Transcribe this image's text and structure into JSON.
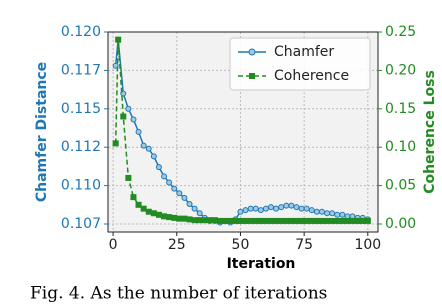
{
  "chart_data": {
    "type": "line",
    "caption": "Fig. 4. As the number of iterations",
    "xlabel": "Iteration",
    "ylabel": "Chamfer Distance",
    "y2label": "Coherence Loss",
    "x": [
      1,
      2,
      4,
      6,
      8,
      10,
      12,
      14,
      16,
      18,
      20,
      22,
      24,
      26,
      28,
      30,
      32,
      34,
      36,
      38,
      40,
      42,
      44,
      46,
      48,
      50,
      52,
      54,
      56,
      58,
      60,
      62,
      64,
      66,
      68,
      70,
      72,
      74,
      76,
      78,
      80,
      82,
      84,
      86,
      88,
      90,
      92,
      94,
      96,
      98,
      100
    ],
    "series": [
      {
        "name": "Chamfer",
        "color": "#1f77b4",
        "marker": "circle",
        "dash": false,
        "values": [
          0.1178,
          0.1195,
          0.116,
          0.115,
          0.1143,
          0.1135,
          0.1126,
          0.1124,
          0.1119,
          0.1112,
          0.1106,
          0.1102,
          0.1098,
          0.1095,
          0.1092,
          0.1088,
          0.1085,
          0.1082,
          0.1079,
          0.1077,
          0.1077,
          0.1076,
          0.1077,
          0.1076,
          0.1078,
          0.1083,
          0.1084,
          0.1085,
          0.1085,
          0.1084,
          0.1085,
          0.1086,
          0.1085,
          0.1086,
          0.1087,
          0.1087,
          0.1086,
          0.1085,
          0.1085,
          0.1084,
          0.1083,
          0.1083,
          0.1082,
          0.1082,
          0.1081,
          0.1081,
          0.108,
          0.108,
          0.1079,
          0.1079,
          0.1078
        ]
      },
      {
        "name": "Coherence",
        "color": "#228b22",
        "marker": "square",
        "dash": true,
        "axis": "y2",
        "values": [
          0.105,
          0.24,
          0.14,
          0.06,
          0.035,
          0.025,
          0.02,
          0.016,
          0.014,
          0.012,
          0.01,
          0.009,
          0.008,
          0.007,
          0.007,
          0.006,
          0.005,
          0.005,
          0.005,
          0.005,
          0.005,
          0.004,
          0.004,
          0.004,
          0.004,
          0.004,
          0.004,
          0.004,
          0.004,
          0.004,
          0.004,
          0.004,
          0.004,
          0.004,
          0.004,
          0.004,
          0.004,
          0.004,
          0.004,
          0.004,
          0.004,
          0.004,
          0.004,
          0.004,
          0.004,
          0.004,
          0.004,
          0.004,
          0.004,
          0.004,
          0.004
        ]
      }
    ],
    "xlim": [
      -2,
      104
    ],
    "xticks": [
      0,
      25,
      50,
      75,
      100
    ],
    "ylim": [
      0.10698,
      0.12
    ],
    "yticks": [
      {
        "value": 0.1075,
        "label": "0.107"
      },
      {
        "value": 0.11,
        "label": "0.110"
      },
      {
        "value": 0.1125,
        "label": "0.112"
      },
      {
        "value": 0.115,
        "label": "0.115"
      },
      {
        "value": 0.1175,
        "label": "0.117"
      },
      {
        "value": 0.12,
        "label": "0.120"
      }
    ],
    "y2lim": [
      -0.0104,
      0.25
    ],
    "y2ticks": [
      {
        "value": 0,
        "label": "0.00"
      },
      {
        "value": 0.05,
        "label": "0.05"
      },
      {
        "value": 0.1,
        "label": "0.10"
      },
      {
        "value": 0.15,
        "label": "0.15"
      },
      {
        "value": 0.2,
        "label": "0.20"
      },
      {
        "value": 0.25,
        "label": "0.25"
      }
    ],
    "grid": true,
    "legend": "upper right"
  }
}
